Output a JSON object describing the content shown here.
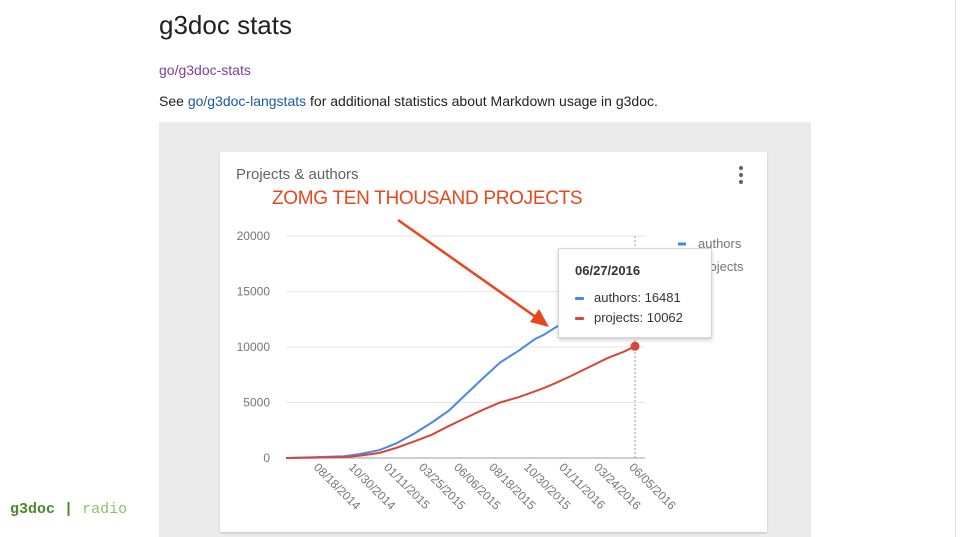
{
  "page": {
    "title": "g3doc stats",
    "shortlink": "go/g3doc-stats",
    "description": {
      "prefix": "See ",
      "link_text": "go/g3doc-langstats",
      "suffix": " for additional statistics about Markdown usage in g3doc."
    }
  },
  "annotation": {
    "text": "ZOMG TEN THOUSAND PROJECTS",
    "color": "#e8471c"
  },
  "tooltip": {
    "date": "06/27/2016",
    "rows": [
      {
        "label": "authors: 16481",
        "color": "#4a86e8"
      },
      {
        "label": "projects: 10062",
        "color": "#db4437"
      }
    ]
  },
  "footer": {
    "brand": "g3doc",
    "separator": "|",
    "subtitle": "radio"
  },
  "icons": {
    "menu": "more-vert-icon"
  },
  "chart_data": {
    "type": "line",
    "title": "Projects & authors",
    "xlabel": "",
    "ylabel": "",
    "ylim": [
      0,
      20000
    ],
    "y_ticks": [
      "20000",
      "15000",
      "10000",
      "5000",
      "0"
    ],
    "x_tick_labels": [
      "08/18/2014",
      "10/30/2014",
      "01/11/2015",
      "03/25/2015",
      "06/06/2015",
      "08/18/2015",
      "10/30/2015",
      "01/11/2016",
      "03/24/2016",
      "06/05/2016"
    ],
    "grid": true,
    "legend_position": "right",
    "series": [
      {
        "name": "authors",
        "color": "#4a86e8",
        "x": [
          "07/01/2014",
          "08/18/2014",
          "10/30/2014",
          "12/01/2014",
          "01/11/2015",
          "02/15/2015",
          "03/25/2015",
          "05/01/2015",
          "06/06/2015",
          "07/15/2015",
          "08/18/2015",
          "09/20/2015",
          "10/30/2015",
          "12/01/2015",
          "12/20/2015",
          "01/11/2016",
          "02/15/2016",
          "03/24/2016",
          "05/01/2016",
          "06/05/2016",
          "06/27/2016"
        ],
        "values": [
          0,
          50,
          150,
          350,
          700,
          1300,
          2200,
          3200,
          4300,
          5900,
          7300,
          8600,
          9700,
          10700,
          11100,
          11700,
          12600,
          13700,
          15000,
          16000,
          16481
        ]
      },
      {
        "name": "projects",
        "color": "#db4437",
        "x": [
          "07/01/2014",
          "08/18/2014",
          "10/30/2014",
          "12/01/2014",
          "01/11/2015",
          "02/15/2015",
          "03/25/2015",
          "05/01/2015",
          "06/06/2015",
          "07/15/2015",
          "08/18/2015",
          "09/20/2015",
          "10/30/2015",
          "12/01/2015",
          "12/20/2015",
          "01/11/2016",
          "02/15/2016",
          "03/24/2016",
          "05/01/2016",
          "06/05/2016",
          "06/27/2016"
        ],
        "values": [
          0,
          20,
          80,
          200,
          450,
          900,
          1500,
          2100,
          2900,
          3700,
          4400,
          5000,
          5500,
          6000,
          6300,
          6700,
          7400,
          8200,
          9000,
          9600,
          10062
        ]
      }
    ]
  }
}
